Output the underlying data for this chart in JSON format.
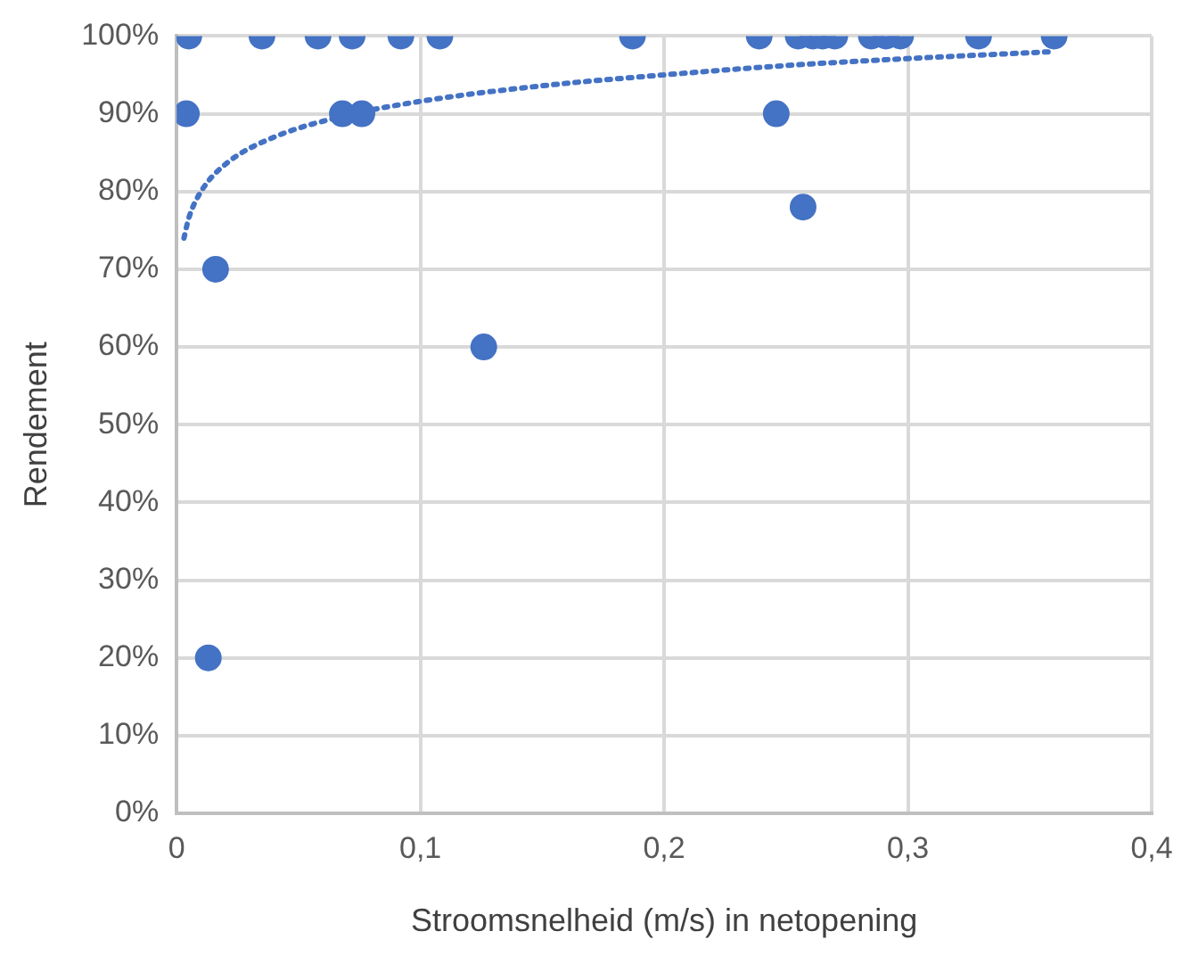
{
  "chart_data": {
    "type": "scatter",
    "xlabel": "Stroomsnelheid (m/s) in netopening",
    "ylabel": "Rendement",
    "xlim": [
      0,
      0.4
    ],
    "xticks": [
      0,
      {
        "value": 0.1,
        "label": "0,1"
      },
      {
        "value": 0.2,
        "label": "0,2"
      },
      {
        "value": 0.3,
        "label": "0,3"
      },
      {
        "value": 0.4,
        "label": "0,4"
      }
    ],
    "ylim": [
      0,
      100
    ],
    "yticks": [
      {
        "value": 0,
        "label": "0%"
      },
      {
        "value": 10,
        "label": "10%"
      },
      {
        "value": 20,
        "label": "20%"
      },
      {
        "value": 30,
        "label": "30%"
      },
      {
        "value": 40,
        "label": "40%"
      },
      {
        "value": 50,
        "label": "50%"
      },
      {
        "value": 60,
        "label": "60%"
      },
      {
        "value": 70,
        "label": "70%"
      },
      {
        "value": 80,
        "label": "80%"
      },
      {
        "value": 90,
        "label": "90%"
      },
      {
        "value": 100,
        "label": "100%"
      }
    ],
    "grid": true,
    "legend": false,
    "series": [
      {
        "type": "scatter",
        "color": "#4472c4",
        "marker": "circle",
        "x": [
          0.005,
          0.035,
          0.058,
          0.072,
          0.092,
          0.108,
          0.187,
          0.239,
          0.255,
          0.261,
          0.265,
          0.27,
          0.285,
          0.291,
          0.297,
          0.329,
          0.36,
          0.004,
          0.068,
          0.076,
          0.246,
          0.257,
          0.016,
          0.126,
          0.013
        ],
        "values": [
          100,
          100,
          100,
          100,
          100,
          100,
          100,
          100,
          100,
          100,
          100,
          100,
          100,
          100,
          100,
          100,
          100,
          90,
          90,
          90,
          90,
          78,
          70,
          60,
          20
        ]
      },
      {
        "type": "line",
        "color": "#4472c4",
        "marker": "none",
        "line_style": "dotted",
        "x": [
          0.003,
          0.005,
          0.01,
          0.02,
          0.04,
          0.07,
          0.1,
          0.15,
          0.2,
          0.25,
          0.3,
          0.36
        ],
        "values": [
          74,
          76.6,
          80,
          83.5,
          87,
          89.8,
          91.6,
          93.6,
          95,
          96.2,
          97.1,
          98
        ]
      }
    ]
  }
}
